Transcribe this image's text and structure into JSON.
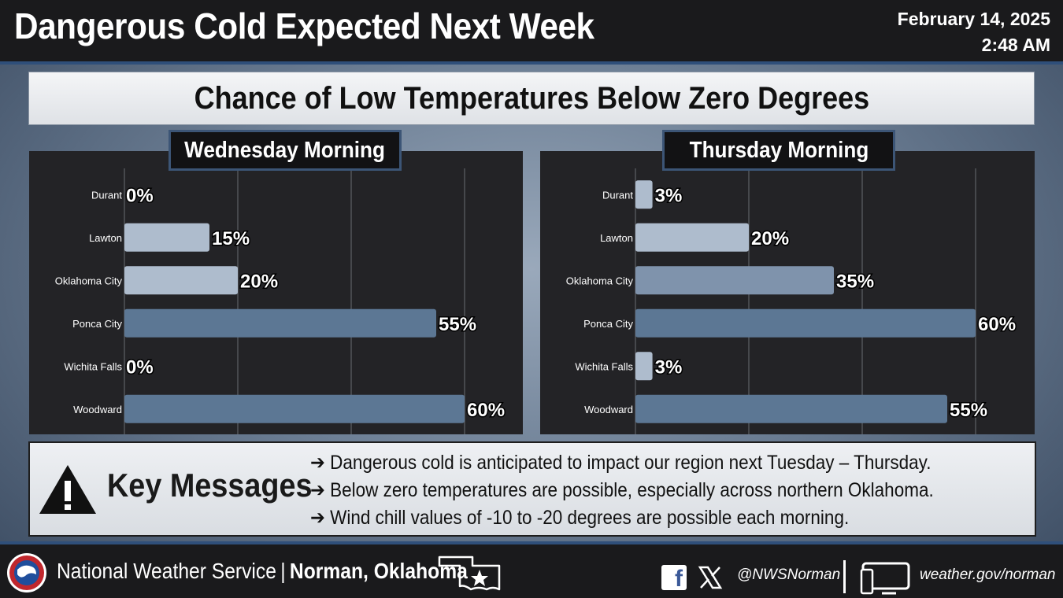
{
  "header": {
    "title": "Dangerous Cold Expected Next Week",
    "date": "February 14, 2025",
    "time": "2:48 AM"
  },
  "subtitle": "Chance of Low Temperatures Below Zero Degrees",
  "chart_data": [
    {
      "type": "bar",
      "orientation": "horizontal",
      "title": "Wednesday Morning",
      "categories": [
        "Durant",
        "Lawton",
        "Oklahoma City",
        "Ponca City",
        "Wichita Falls",
        "Woodward"
      ],
      "values": [
        0,
        15,
        20,
        55,
        0,
        60
      ],
      "labels": [
        "0%",
        "15%",
        "20%",
        "55%",
        "0%",
        "60%"
      ],
      "xlim": [
        0,
        60
      ],
      "unit": "%",
      "grid": true
    },
    {
      "type": "bar",
      "orientation": "horizontal",
      "title": "Thursday Morning",
      "categories": [
        "Durant",
        "Lawton",
        "Oklahoma City",
        "Ponca City",
        "Wichita Falls",
        "Woodward"
      ],
      "values": [
        3,
        20,
        35,
        60,
        3,
        55
      ],
      "labels": [
        "3%",
        "20%",
        "35%",
        "60%",
        "3%",
        "55%"
      ],
      "xlim": [
        0,
        60
      ],
      "unit": "%",
      "grid": true
    }
  ],
  "key_messages": {
    "title": "Key Messages",
    "items": [
      "➔ Dangerous cold is anticipated to impact our region next Tuesday – Thursday.",
      "➔ Below zero temperatures are possible, especially across northern Oklahoma.",
      "➔ Wind chill values of -10 to -20 degrees are possible each morning."
    ]
  },
  "footer": {
    "org": "National Weather Service",
    "separator": "|",
    "office": "Norman, Oklahoma",
    "social_handle": "@NWSNorman",
    "website": "weather.gov/norman",
    "icons": [
      "nws-logo",
      "oklahoma-map-icon",
      "facebook-icon",
      "x-icon",
      "monitor-icon"
    ]
  },
  "colors": {
    "bar_low": "#aebccd",
    "bar_mid": "#7f93ac",
    "bar_high": "#5c7794",
    "panel_bg": "#232326",
    "header_bg": "#1a1a1c",
    "accent": "#2f4f7a"
  }
}
